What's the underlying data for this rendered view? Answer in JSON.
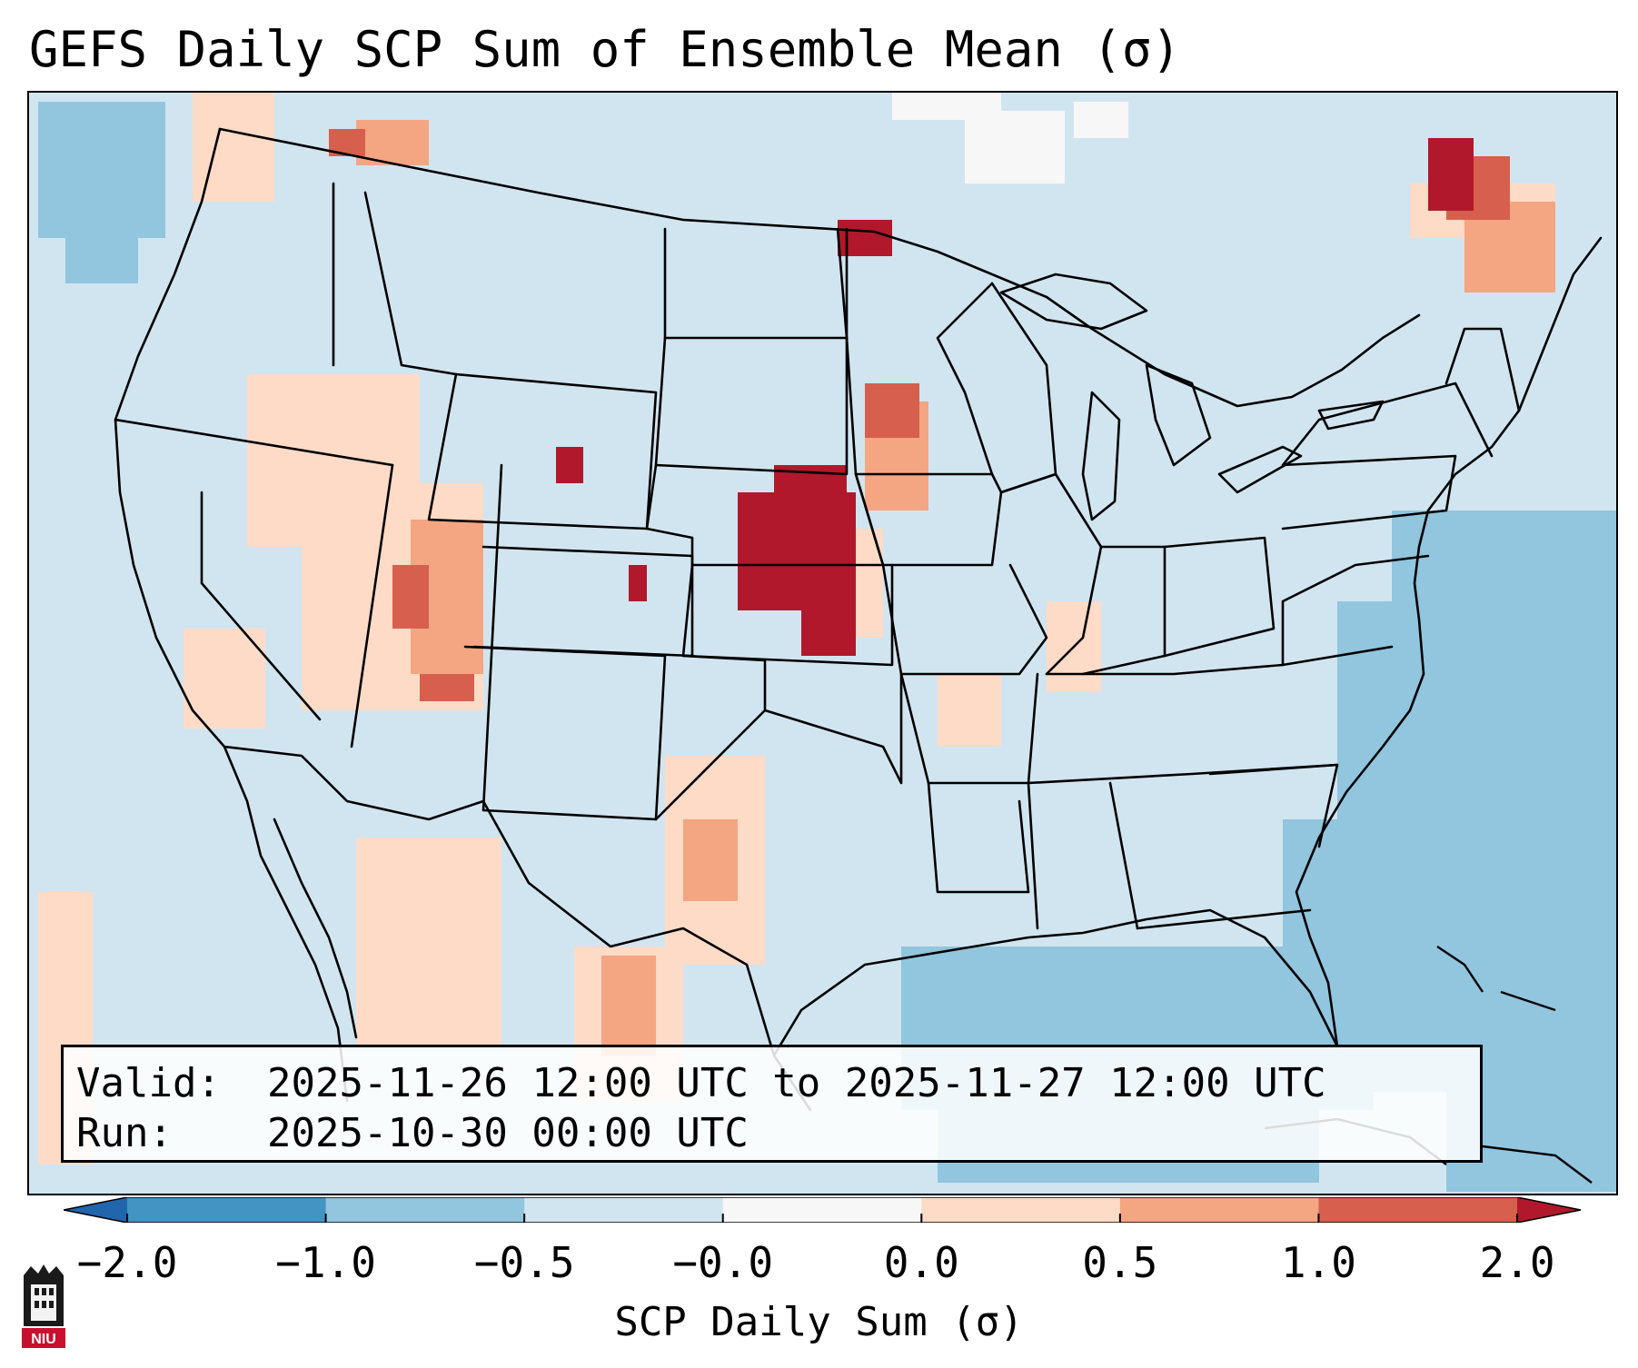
{
  "title": "GEFS Daily SCP Sum of Ensemble Mean (σ)",
  "info": {
    "valid_label": "Valid:",
    "valid_value": "2025-11-26 12:00 UTC to 2025-11-27 12:00 UTC",
    "run_label": "Run:",
    "run_value": "2025-10-30 00:00 UTC"
  },
  "colorbar": {
    "label": "SCP Daily Sum (σ)",
    "tick_labels": [
      "−2.0",
      "−1.0",
      "−0.5",
      "−0.0",
      "0.0",
      "0.5",
      "1.0",
      "2.0"
    ],
    "bins": [
      {
        "range": "< -2.0",
        "color": "#2166ac"
      },
      {
        "range": "-2.0 to -1.0",
        "color": "#4393c3"
      },
      {
        "range": "-1.0 to -0.5",
        "color": "#92c5de"
      },
      {
        "range": "-0.5 to -0.0",
        "color": "#d1e5f0"
      },
      {
        "range": "-0.0 to 0.0",
        "color": "#f7f7f7"
      },
      {
        "range": "0.0 to 0.5",
        "color": "#fddbc7"
      },
      {
        "range": "0.5 to 1.0",
        "color": "#f4a582"
      },
      {
        "range": "1.0 to 2.0",
        "color": "#d6604d"
      },
      {
        "range": "> 2.0",
        "color": "#b2182b"
      }
    ]
  },
  "map": {
    "region": "Contiguous United States",
    "background_color": "#d1e5f0",
    "boundary_color": "#000000",
    "max_anomaly_area": "Nebraska / South Dakota / Iowa border",
    "negative_anomaly_areas": [
      "Gulf of Mexico",
      "Western Atlantic",
      "Pacific coast of Washington"
    ]
  },
  "logo": {
    "text": "NIU"
  }
}
